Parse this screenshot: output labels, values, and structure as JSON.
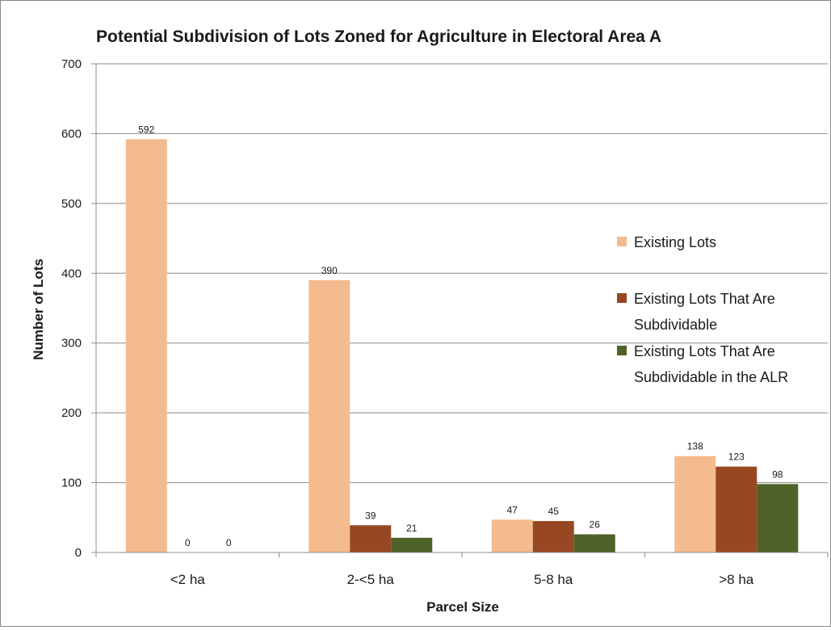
{
  "chart_data": {
    "type": "bar",
    "title": "Potential Subdivision of Lots Zoned for Agriculture in Electoral Area A",
    "xlabel": "Parcel Size",
    "ylabel": "Number of Lots",
    "ylim": [
      0,
      700
    ],
    "yticks": [
      0,
      100,
      200,
      300,
      400,
      500,
      600,
      700
    ],
    "grid": true,
    "legend_position": "right",
    "categories": [
      "<2 ha",
      "2-<5 ha",
      "5-8 ha",
      ">8 ha"
    ],
    "series": [
      {
        "name": "Existing Lots",
        "color": "#F4BB8E",
        "values": [
          592,
          390,
          47,
          138
        ]
      },
      {
        "name": "Existing Lots That Are Subdividable",
        "color": "#974823",
        "values": [
          0,
          39,
          45,
          123
        ]
      },
      {
        "name": "Existing Lots That Are Subdividable in the ALR",
        "color": "#4F6228",
        "values": [
          0,
          21,
          26,
          98
        ]
      }
    ],
    "legend": [
      {
        "lines": [
          "Existing Lots"
        ]
      },
      {
        "lines": [
          "Existing Lots That Are",
          "Subdividable"
        ]
      },
      {
        "lines": [
          "Existing Lots That Are",
          "Subdividable in the ALR"
        ]
      }
    ]
  }
}
